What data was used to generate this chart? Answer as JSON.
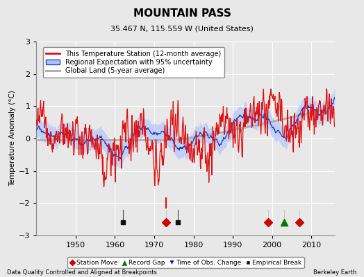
{
  "title": "MOUNTAIN PASS",
  "subtitle": "35.467 N, 115.559 W (United States)",
  "ylabel": "Temperature Anomaly (°C)",
  "footer_left": "Data Quality Controlled and Aligned at Breakpoints",
  "footer_right": "Berkeley Earth",
  "xlim": [
    1940,
    2016
  ],
  "ylim": [
    -3,
    3
  ],
  "yticks": [
    -3,
    -2,
    -1,
    0,
    1,
    2,
    3
  ],
  "xticks": [
    1950,
    1960,
    1970,
    1980,
    1990,
    2000,
    2010
  ],
  "background_color": "#e8e8e8",
  "legend_labels": [
    "This Temperature Station (12-month average)",
    "Regional Expectation with 95% uncertainty",
    "Global Land (5-year average)"
  ],
  "event_markers": {
    "station_move": {
      "years": [
        1973,
        1999,
        2007
      ],
      "color": "#cc0000",
      "marker": "D",
      "label": "Station Move"
    },
    "record_gap": {
      "years": [
        2003
      ],
      "color": "#007700",
      "marker": "^",
      "label": "Record Gap"
    },
    "time_obs_change": {
      "years": [],
      "color": "#0000cc",
      "marker": "v",
      "label": "Time of Obs. Change"
    },
    "empirical_break": {
      "years": [
        1962,
        1976
      ],
      "color": "#111111",
      "marker": "s",
      "label": "Empirical Break"
    }
  },
  "event_y": -2.6,
  "seed": 17
}
